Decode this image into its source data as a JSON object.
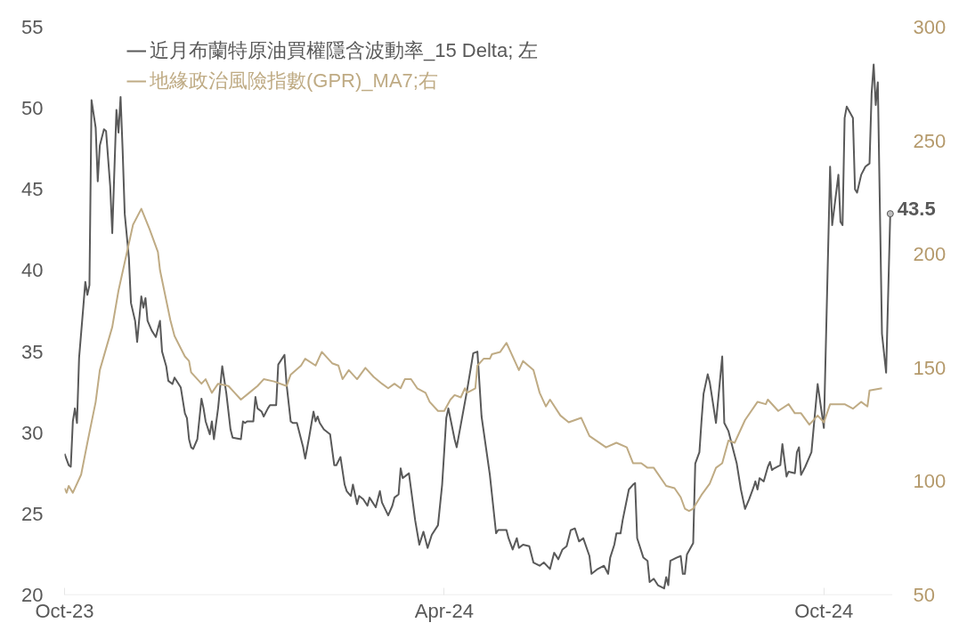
{
  "chart_data": {
    "type": "line",
    "xlim": [
      "2023-10-01",
      "2024-11-03"
    ],
    "xticks": [
      {
        "value": "2023-10-01",
        "label": "Oct-23"
      },
      {
        "value": "2024-04-01",
        "label": "Apr-24"
      },
      {
        "value": "2024-10-01",
        "label": "Oct-24"
      }
    ],
    "ylim": [
      20,
      55
    ],
    "yticks": [
      20,
      25,
      30,
      35,
      40,
      45,
      50,
      55
    ],
    "y2lim": [
      50,
      300
    ],
    "y2ticks": [
      50,
      100,
      150,
      200,
      250,
      300
    ],
    "grid": false,
    "legend": "top left",
    "line_style": "solid",
    "marker": "none",
    "annotations": [
      {
        "text": "43.5",
        "x": "2024-11-02",
        "y": 43.5
      }
    ],
    "series": [
      {
        "name": "近月布蘭特原油買權隱含波動率_15 Delta; 左",
        "color": "#595959",
        "x": [
          "2023-10-01",
          "2023-10-03",
          "2023-10-04",
          "2023-10-05",
          "2023-10-06",
          "2023-10-07",
          "2023-10-08",
          "2023-10-10",
          "2023-10-11",
          "2023-10-12",
          "2023-10-13",
          "2023-10-14",
          "2023-10-16",
          "2023-10-17",
          "2023-10-18",
          "2023-10-20",
          "2023-10-21",
          "2023-10-23",
          "2023-10-24",
          "2023-10-26",
          "2023-10-27",
          "2023-10-28",
          "2023-10-29",
          "2023-10-30",
          "2023-11-01",
          "2023-11-02",
          "2023-11-04",
          "2023-11-05",
          "2023-11-07",
          "2023-11-08",
          "2023-11-09",
          "2023-11-10",
          "2023-11-12",
          "2023-11-14",
          "2023-11-16",
          "2023-11-17",
          "2023-11-19",
          "2023-11-20",
          "2023-11-22",
          "2023-11-23",
          "2023-11-26",
          "2023-11-28",
          "2023-11-29",
          "2023-11-30",
          "2023-12-01",
          "2023-12-02",
          "2023-12-04",
          "2023-12-06",
          "2023-12-07",
          "2023-12-08",
          "2023-12-10",
          "2023-12-11",
          "2023-12-12",
          "2023-12-14",
          "2023-12-16",
          "2023-12-18",
          "2023-12-20",
          "2023-12-21",
          "2023-12-25",
          "2023-12-26",
          "2023-12-27",
          "2023-12-28",
          "2023-12-31",
          "2024-01-01",
          "2024-01-02",
          "2024-01-04",
          "2024-01-05",
          "2024-01-07",
          "2024-01-08",
          "2024-01-11",
          "2024-01-12",
          "2024-01-15",
          "2024-01-16",
          "2024-01-18",
          "2024-01-19",
          "2024-01-21",
          "2024-01-24",
          "2024-01-25",
          "2024-01-27",
          "2024-01-29",
          "2024-01-30",
          "2024-01-31",
          "2024-02-01",
          "2024-02-03",
          "2024-02-06",
          "2024-02-08",
          "2024-02-09",
          "2024-02-11",
          "2024-02-13",
          "2024-02-14",
          "2024-02-16",
          "2024-02-17",
          "2024-02-19",
          "2024-02-20",
          "2024-02-22",
          "2024-02-24",
          "2024-02-25",
          "2024-02-28",
          "2024-03-01",
          "2024-03-02",
          "2024-03-05",
          "2024-03-07",
          "2024-03-08",
          "2024-03-10",
          "2024-03-11",
          "2024-03-12",
          "2024-03-14",
          "2024-03-15",
          "2024-03-18",
          "2024-03-20",
          "2024-03-22",
          "2024-03-24",
          "2024-03-26",
          "2024-03-29",
          "2024-03-31",
          "2024-04-02",
          "2024-04-03",
          "2024-04-06",
          "2024-04-07",
          "2024-04-09",
          "2024-04-12",
          "2024-04-15",
          "2024-04-17",
          "2024-04-19",
          "2024-04-23",
          "2024-04-26",
          "2024-04-27",
          "2024-05-01",
          "2024-05-02",
          "2024-05-04",
          "2024-05-06",
          "2024-05-07",
          "2024-05-09",
          "2024-05-12",
          "2024-05-14",
          "2024-05-17",
          "2024-05-19",
          "2024-05-22",
          "2024-05-24",
          "2024-05-26",
          "2024-05-28",
          "2024-05-30",
          "2024-06-01",
          "2024-06-03",
          "2024-06-05",
          "2024-06-07",
          "2024-06-10",
          "2024-06-11",
          "2024-06-14",
          "2024-06-17",
          "2024-06-19",
          "2024-06-20",
          "2024-06-22",
          "2024-06-23",
          "2024-06-25",
          "2024-06-26",
          "2024-06-29",
          "2024-07-01",
          "2024-07-02",
          "2024-07-03",
          "2024-07-06",
          "2024-07-08",
          "2024-07-09",
          "2024-07-11",
          "2024-07-13",
          "2024-07-16",
          "2024-07-17",
          "2024-07-18",
          "2024-07-19",
          "2024-07-22",
          "2024-07-24",
          "2024-07-25",
          "2024-07-26",
          "2024-07-27",
          "2024-07-30",
          "2024-07-31",
          "2024-08-02",
          "2024-08-03",
          "2024-08-04",
          "2024-08-06",
          "2024-08-07",
          "2024-08-10",
          "2024-08-13",
          "2024-08-14",
          "2024-08-16",
          "2024-08-20",
          "2024-08-22",
          "2024-08-24",
          "2024-08-26",
          "2024-08-28",
          "2024-08-29",
          "2024-08-30",
          "2024-08-31",
          "2024-09-02",
          "2024-09-04",
          "2024-09-05",
          "2024-09-06",
          "2024-09-07",
          "2024-09-10",
          "2024-09-11",
          "2024-09-13",
          "2024-09-14",
          "2024-09-17",
          "2024-09-18",
          "2024-09-19",
          "2024-09-20",
          "2024-09-22",
          "2024-09-24",
          "2024-09-25",
          "2024-09-28",
          "2024-09-30",
          "2024-10-01",
          "2024-10-04",
          "2024-10-05",
          "2024-10-08",
          "2024-10-09",
          "2024-10-10",
          "2024-10-11",
          "2024-10-12",
          "2024-10-15",
          "2024-10-16",
          "2024-10-17",
          "2024-10-19",
          "2024-10-21",
          "2024-10-23",
          "2024-10-24",
          "2024-10-25",
          "2024-10-26",
          "2024-10-27",
          "2024-10-29",
          "2024-10-31",
          "2024-11-02"
        ],
        "values": [
          28.7,
          28.0,
          27.9,
          30.7,
          31.5,
          30.6,
          34.6,
          37.7,
          39.3,
          38.5,
          39.1,
          50.5,
          48.8,
          45.5,
          47.7,
          48.7,
          48.6,
          45.2,
          42.3,
          49.9,
          48.5,
          50.7,
          47.4,
          43.5,
          40.8,
          38.0,
          36.9,
          35.6,
          38.4,
          37.7,
          38.3,
          36.9,
          36.3,
          35.9,
          36.9,
          35.0,
          34.1,
          33.2,
          33.0,
          33.4,
          32.8,
          31.2,
          30.9,
          29.6,
          29.1,
          29.0,
          29.6,
          32.1,
          31.5,
          30.7,
          29.9,
          30.7,
          29.6,
          31.5,
          34.1,
          32.4,
          30.2,
          29.7,
          29.6,
          30.7,
          30.6,
          30.7,
          30.7,
          32.2,
          31.5,
          31.3,
          31.0,
          31.5,
          31.7,
          31.7,
          34.2,
          34.8,
          33.0,
          30.7,
          30.6,
          30.6,
          29.1,
          28.4,
          29.8,
          31.3,
          30.7,
          31.0,
          30.6,
          30.2,
          29.9,
          28.0,
          28.0,
          28.5,
          26.8,
          26.4,
          26.1,
          26.8,
          25.6,
          26.1,
          25.9,
          25.5,
          26.0,
          25.4,
          26.4,
          25.7,
          24.9,
          25.5,
          26.0,
          26.2,
          27.8,
          27.2,
          27.4,
          27.5,
          24.6,
          23.1,
          23.9,
          22.9,
          23.7,
          24.3,
          26.8,
          30.9,
          31.5,
          29.6,
          29.1,
          30.5,
          32.6,
          34.9,
          35.0,
          31.0,
          27.4,
          23.8,
          24.0,
          24.0,
          23.5,
          22.8,
          23.5,
          22.9,
          23.1,
          23.0,
          22.0,
          21.8,
          22.0,
          21.6,
          22.6,
          22.2,
          22.8,
          23.0,
          24.0,
          24.1,
          23.3,
          23.5,
          22.4,
          21.3,
          21.6,
          21.8,
          21.3,
          22.3,
          23.1,
          23.8,
          23.8,
          24.6,
          26.5,
          26.8,
          26.9,
          23.5,
          22.3,
          22.1,
          20.8,
          21.0,
          20.6,
          20.4,
          21.1,
          20.6,
          22.1,
          22.3,
          22.4,
          21.3,
          21.3,
          22.5,
          23.2,
          28.1,
          28.8,
          30.7,
          32.4,
          33.6,
          33.1,
          30.6,
          34.7,
          30.6,
          30.1,
          28.1,
          26.5,
          25.3,
          25.9,
          26.6,
          27.0,
          26.5,
          27.2,
          27.0,
          27.9,
          28.2,
          27.7,
          27.8,
          28.0,
          29.3,
          27.3,
          27.6,
          27.5,
          28.8,
          29.1,
          27.4,
          27.9,
          28.5,
          28.8,
          33.0,
          31.2,
          30.3,
          46.4,
          42.8,
          45.9,
          43.0,
          42.8,
          49.4,
          50.1,
          49.4,
          45.0,
          44.8,
          45.9,
          46.4,
          46.6,
          50.9,
          52.7,
          50.2,
          51.6,
          36.1,
          33.7,
          43.5
        ]
      },
      {
        "name": "地緣政治風險指數(GPR)_MA7;右",
        "color": "#bfab84",
        "axis": "y2",
        "x": [
          "2023-10-01",
          "2023-10-02",
          "2023-10-03",
          "2023-10-05",
          "2023-10-09",
          "2023-10-12",
          "2023-10-16",
          "2023-10-18",
          "2023-10-24",
          "2023-10-27",
          "2023-11-03",
          "2023-11-07",
          "2023-11-11",
          "2023-11-15",
          "2023-11-16",
          "2023-11-21",
          "2023-11-23",
          "2023-11-28",
          "2023-11-30",
          "2023-12-01",
          "2023-12-06",
          "2023-12-08",
          "2023-12-11",
          "2023-12-14",
          "2023-12-19",
          "2023-12-22",
          "2023-12-25",
          "2023-12-29",
          "2024-01-02",
          "2024-01-05",
          "2024-01-10",
          "2024-01-16",
          "2024-01-18",
          "2024-01-23",
          "2024-01-25",
          "2024-01-30",
          "2024-02-02",
          "2024-02-07",
          "2024-02-10",
          "2024-02-12",
          "2024-02-15",
          "2024-02-19",
          "2024-02-23",
          "2024-02-27",
          "2024-03-02",
          "2024-03-05",
          "2024-03-08",
          "2024-03-11",
          "2024-03-13",
          "2024-03-16",
          "2024-03-19",
          "2024-03-23",
          "2024-03-25",
          "2024-03-29",
          "2024-04-01",
          "2024-04-04",
          "2024-04-06",
          "2024-04-09",
          "2024-04-11",
          "2024-04-12",
          "2024-04-16",
          "2024-04-17",
          "2024-04-20",
          "2024-04-23",
          "2024-04-24",
          "2024-04-28",
          "2024-05-01",
          "2024-05-03",
          "2024-05-07",
          "2024-05-09",
          "2024-05-14",
          "2024-05-17",
          "2024-05-20",
          "2024-05-22",
          "2024-05-27",
          "2024-05-31",
          "2024-06-06",
          "2024-06-10",
          "2024-06-18",
          "2024-06-23",
          "2024-06-28",
          "2024-07-01",
          "2024-07-05",
          "2024-07-08",
          "2024-07-11",
          "2024-07-17",
          "2024-07-21",
          "2024-07-24",
          "2024-07-26",
          "2024-07-28",
          "2024-07-30",
          "2024-08-03",
          "2024-08-07",
          "2024-08-10",
          "2024-08-13",
          "2024-08-16",
          "2024-08-19",
          "2024-08-24",
          "2024-08-30",
          "2024-09-03",
          "2024-09-04",
          "2024-09-09",
          "2024-09-14",
          "2024-09-17",
          "2024-09-20",
          "2024-09-24",
          "2024-09-28",
          "2024-10-01",
          "2024-10-04",
          "2024-10-11",
          "2024-10-15",
          "2024-10-19",
          "2024-10-22",
          "2024-10-23",
          "2024-10-29"
        ],
        "values": [
          97,
          95,
          98,
          95,
          103,
          117,
          135,
          149,
          168,
          184,
          213,
          220,
          211,
          201,
          193,
          171,
          164,
          155,
          153,
          148,
          143,
          145,
          139,
          143,
          142,
          139,
          136,
          139,
          142,
          145,
          144,
          142,
          147,
          151,
          154,
          151,
          157,
          152,
          151,
          145,
          149,
          145,
          150,
          146,
          143,
          141,
          143,
          141,
          145,
          145,
          141,
          139,
          135,
          131,
          131,
          136,
          138,
          137,
          141,
          139,
          141,
          151,
          154,
          154,
          156,
          157,
          161,
          157,
          149,
          153,
          149,
          139,
          133,
          136,
          129,
          126,
          128,
          120,
          115,
          117,
          115,
          108,
          108,
          106,
          106,
          98,
          97,
          93,
          88,
          87,
          88,
          94,
          99,
          106,
          108,
          118,
          117,
          127,
          135,
          134,
          136,
          131,
          134,
          130,
          130,
          125,
          129,
          126,
          134,
          134,
          132,
          135,
          133,
          140,
          141
        ]
      }
    ]
  }
}
